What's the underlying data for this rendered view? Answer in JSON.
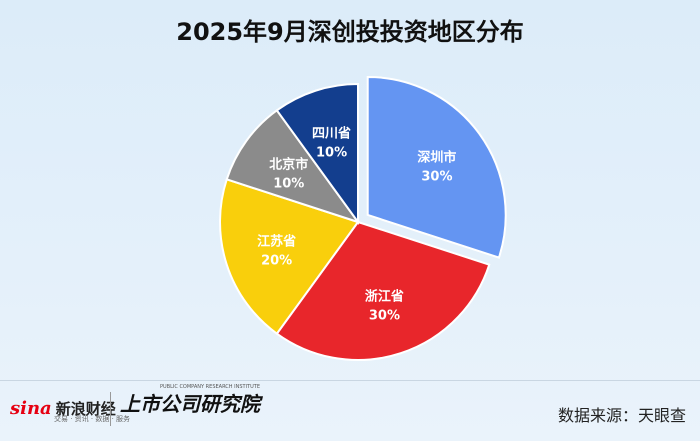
{
  "title": "2025年9月深创投投资地区分布",
  "chart_data": {
    "type": "pie",
    "title": "2025年9月深创投投资地区分布",
    "slices": [
      {
        "name": "深圳市",
        "value": 30,
        "label": "30%",
        "color": "#6495f2",
        "exploded": true
      },
      {
        "name": "浙江省",
        "value": 30,
        "label": "30%",
        "color": "#e8262b",
        "exploded": false
      },
      {
        "name": "江苏省",
        "value": 20,
        "label": "20%",
        "color": "#f9cf0c",
        "exploded": false
      },
      {
        "name": "北京市",
        "value": 10,
        "label": "10%",
        "color": "#8b8b8b",
        "exploded": false
      },
      {
        "name": "四川省",
        "value": 10,
        "label": "10%",
        "color": "#133e8e",
        "exploded": false
      }
    ]
  },
  "footer": {
    "sina_mark": "sina",
    "sina_name": "新浪财经",
    "sina_sub": "交易 · 资讯 · 数据 · 服务",
    "institute_name": "上市公司研究院",
    "institute_en": "PUBLIC COMPANY RESEARCH INSTITUTE",
    "source": "数据来源：天眼查"
  }
}
